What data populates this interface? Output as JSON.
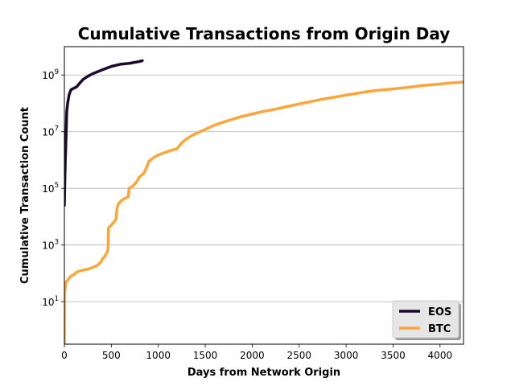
{
  "chart_data": {
    "type": "line",
    "title": "Cumulative Transactions from Origin Day",
    "xlabel": "Days from Network Origin",
    "ylabel": "Cumulative Transaction Count",
    "xlim": [
      0,
      4250
    ],
    "ylim_log10": [
      -0.5,
      10
    ],
    "y_scale": "log",
    "grid": "y-major",
    "legend_position": "bottom-right",
    "x_ticks": [
      "0",
      "500",
      "1000",
      "1500",
      "2000",
      "2500",
      "3000",
      "3500",
      "4000"
    ],
    "x_tick_values": [
      0,
      500,
      1000,
      1500,
      2000,
      2500,
      3000,
      3500,
      4000
    ],
    "y_tick_bases": [
      "10",
      "10",
      "10",
      "10",
      "10"
    ],
    "y_tick_exponents": [
      "1",
      "3",
      "5",
      "7",
      "9"
    ],
    "y_tick_values": [
      10,
      1000,
      100000,
      10000000,
      1000000000
    ],
    "series": [
      {
        "name": "EOS",
        "color": "#1b0a2e",
        "points": [
          [
            0,
            25000.0
          ],
          [
            5,
            200000.0
          ],
          [
            10,
            1000000.0
          ],
          [
            15,
            3000000.0
          ],
          [
            25,
            50000000.0
          ],
          [
            35,
            100000000.0
          ],
          [
            50,
            200000000.0
          ],
          [
            70,
            300000000.0
          ],
          [
            100,
            340000000.0
          ],
          [
            130,
            380000000.0
          ],
          [
            160,
            500000000.0
          ],
          [
            200,
            700000000.0
          ],
          [
            250,
            900000000.0
          ],
          [
            300,
            1100000000.0
          ],
          [
            400,
            1500000000.0
          ],
          [
            500,
            2000000000.0
          ],
          [
            550,
            2200000000.0
          ],
          [
            600,
            2400000000.0
          ],
          [
            700,
            2600000000.0
          ],
          [
            800,
            3000000000.0
          ],
          [
            830,
            3200000000.0
          ]
        ]
      },
      {
        "name": "BTC",
        "color": "#fca63a",
        "points": [
          [
            0,
            0.3
          ],
          [
            2,
            20
          ],
          [
            10,
            30
          ],
          [
            20,
            50
          ],
          [
            40,
            60
          ],
          [
            60,
            75
          ],
          [
            100,
            90
          ],
          [
            130,
            110
          ],
          [
            160,
            120
          ],
          [
            200,
            130
          ],
          [
            250,
            140
          ],
          [
            300,
            160
          ],
          [
            350,
            190
          ],
          [
            390,
            250
          ],
          [
            400,
            300
          ],
          [
            430,
            400
          ],
          [
            455,
            550
          ],
          [
            465,
            700
          ],
          [
            470,
            4000
          ],
          [
            500,
            5000
          ],
          [
            550,
            8000
          ],
          [
            560,
            20000
          ],
          [
            580,
            30000
          ],
          [
            620,
            40000
          ],
          [
            680,
            50000
          ],
          [
            690,
            100000
          ],
          [
            730,
            120000
          ],
          [
            770,
            170000
          ],
          [
            800,
            250000
          ],
          [
            850,
            350000
          ],
          [
            880,
            600000
          ],
          [
            900,
            900000
          ],
          [
            950,
            1200000
          ],
          [
            1000,
            1500000
          ],
          [
            1100,
            2000000
          ],
          [
            1200,
            2500000
          ],
          [
            1250,
            4000000
          ],
          [
            1300,
            5500000
          ],
          [
            1350,
            7000000
          ],
          [
            1400,
            8500000
          ],
          [
            1500,
            12000000
          ],
          [
            1600,
            17000000
          ],
          [
            1700,
            22000000
          ],
          [
            1800,
            28000000
          ],
          [
            1900,
            35000000
          ],
          [
            2000,
            42000000
          ],
          [
            2100,
            50000000
          ],
          [
            2200,
            58000000
          ],
          [
            2300,
            68000000
          ],
          [
            2400,
            80000000
          ],
          [
            2500,
            95000000
          ],
          [
            2600,
            110000000
          ],
          [
            2700,
            130000000
          ],
          [
            2800,
            150000000
          ],
          [
            2900,
            170000000
          ],
          [
            3000,
            195000000
          ],
          [
            3100,
            220000000
          ],
          [
            3200,
            250000000
          ],
          [
            3300,
            280000000
          ],
          [
            3400,
            300000000
          ],
          [
            3500,
            320000000
          ],
          [
            3600,
            350000000
          ],
          [
            3700,
            380000000
          ],
          [
            3800,
            420000000
          ],
          [
            3900,
            450000000
          ],
          [
            4000,
            480000000
          ],
          [
            4100,
            520000000
          ],
          [
            4250,
            560000000
          ]
        ]
      }
    ]
  }
}
